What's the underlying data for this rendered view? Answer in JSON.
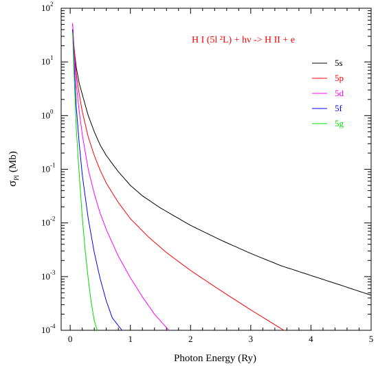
{
  "chart_data": {
    "type": "line",
    "title": "H I (5l ²L) + hν -> H II + e",
    "xlabel": "Photon Energy (Ry)",
    "ylabel_main": "σ",
    "ylabel_sub": "PI",
    "ylabel_unit": " (Mb)",
    "xlim": [
      -0.15,
      5.0
    ],
    "ylim_log10": [
      -4,
      2
    ],
    "yscale": "log",
    "x_ticks": [
      0,
      1,
      2,
      3,
      4,
      5
    ],
    "x_tick_labels": [
      "0",
      "1",
      "2",
      "3",
      "4",
      "5"
    ],
    "y_tick_labels": [
      {
        "base": "10",
        "exp": "-4",
        "value": -4
      },
      {
        "base": "10",
        "exp": "-3",
        "value": -3
      },
      {
        "base": "10",
        "exp": "-2",
        "value": -2
      },
      {
        "base": "10",
        "exp": "-1",
        "value": -1
      },
      {
        "base": "10",
        "exp": "0",
        "value": 0
      },
      {
        "base": "10",
        "exp": "1",
        "value": 1
      },
      {
        "base": "10",
        "exp": "2",
        "value": 2
      }
    ],
    "legend_position": "top-right",
    "series": [
      {
        "name": "5s",
        "color": "#000000",
        "x": [
          0.04,
          0.06,
          0.1,
          0.15,
          0.2,
          0.3,
          0.4,
          0.5,
          0.6,
          0.8,
          1.0,
          1.2,
          1.5,
          2.0,
          2.5,
          3.0,
          3.5,
          4.0,
          4.5,
          5.0
        ],
        "y": [
          40,
          20,
          8,
          4,
          2.5,
          1.0,
          0.5,
          0.28,
          0.18,
          0.09,
          0.05,
          0.032,
          0.019,
          0.009,
          0.0048,
          0.0027,
          0.0016,
          0.00105,
          0.00069,
          0.00045
        ]
      },
      {
        "name": "5p",
        "color": "#ff0000",
        "x": [
          0.04,
          0.06,
          0.1,
          0.15,
          0.2,
          0.3,
          0.4,
          0.5,
          0.6,
          0.8,
          1.0,
          1.3,
          1.6,
          2.0,
          2.5,
          3.0,
          3.55
        ],
        "y": [
          50,
          22,
          6,
          2.5,
          1.2,
          0.4,
          0.18,
          0.095,
          0.055,
          0.024,
          0.012,
          0.0055,
          0.0028,
          0.0013,
          0.00055,
          0.00024,
          0.0001
        ]
      },
      {
        "name": "5d",
        "color": "#ff00ff",
        "x": [
          0.04,
          0.06,
          0.1,
          0.15,
          0.2,
          0.3,
          0.4,
          0.5,
          0.6,
          0.8,
          1.0,
          1.2,
          1.4,
          1.64
        ],
        "y": [
          53,
          20,
          4,
          1.2,
          0.45,
          0.1,
          0.035,
          0.015,
          0.0075,
          0.0024,
          0.00095,
          0.00042,
          0.0002,
          0.0001
        ]
      },
      {
        "name": "5f",
        "color": "#0000ff",
        "x": [
          0.04,
          0.06,
          0.1,
          0.15,
          0.2,
          0.3,
          0.4,
          0.5,
          0.6,
          0.7,
          0.86
        ],
        "y": [
          40,
          12,
          1.5,
          0.3,
          0.08,
          0.012,
          0.0028,
          0.0009,
          0.00035,
          0.00017,
          0.0001
        ]
      },
      {
        "name": "5g",
        "color": "#00dd00",
        "x": [
          0.04,
          0.06,
          0.1,
          0.15,
          0.2,
          0.25,
          0.3,
          0.35,
          0.4,
          0.45
        ],
        "y": [
          35,
          8,
          0.6,
          0.08,
          0.013,
          0.003,
          0.0009,
          0.00033,
          0.00015,
          0.0001
        ]
      }
    ],
    "grid": false
  }
}
